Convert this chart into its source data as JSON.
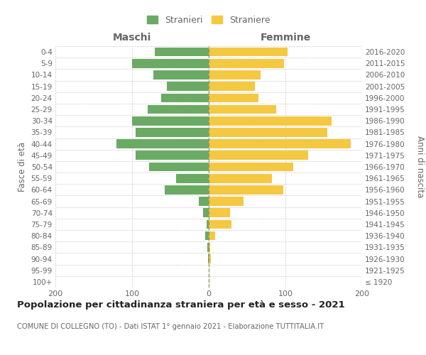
{
  "age_groups": [
    "100+",
    "95-99",
    "90-94",
    "85-89",
    "80-84",
    "75-79",
    "70-74",
    "65-69",
    "60-64",
    "55-59",
    "50-54",
    "45-49",
    "40-44",
    "35-39",
    "30-34",
    "25-29",
    "20-24",
    "15-19",
    "10-14",
    "5-9",
    "0-4"
  ],
  "birth_years": [
    "≤ 1920",
    "1921-1925",
    "1926-1930",
    "1931-1935",
    "1936-1940",
    "1941-1945",
    "1946-1950",
    "1951-1955",
    "1956-1960",
    "1961-1965",
    "1966-1970",
    "1971-1975",
    "1976-1980",
    "1981-1985",
    "1986-1990",
    "1991-1995",
    "1996-2000",
    "2001-2005",
    "2006-2010",
    "2011-2015",
    "2016-2020"
  ],
  "males": [
    0,
    0,
    1,
    2,
    5,
    3,
    7,
    13,
    57,
    43,
    78,
    95,
    120,
    95,
    100,
    80,
    62,
    55,
    72,
    100,
    70
  ],
  "females": [
    0,
    0,
    3,
    2,
    8,
    30,
    28,
    45,
    97,
    82,
    110,
    130,
    185,
    155,
    160,
    88,
    65,
    60,
    68,
    98,
    103
  ],
  "male_color": "#6aaa64",
  "female_color": "#f5c842",
  "grid_color": "#cccccc",
  "text_color": "#666666",
  "dashed_line_color": "#999966",
  "title": "Popolazione per cittadinanza straniera per età e sesso - 2021",
  "subtitle": "COMUNE DI COLLEGNO (TO) - Dati ISTAT 1° gennaio 2021 - Elaborazione TUTTITALIA.IT",
  "label_maschi": "Maschi",
  "label_femmine": "Femmine",
  "ylabel_left": "Fasce di età",
  "ylabel_right": "Anni di nascita",
  "legend_male": "Stranieri",
  "legend_female": "Straniere",
  "xlim": 200,
  "background_color": "#ffffff"
}
